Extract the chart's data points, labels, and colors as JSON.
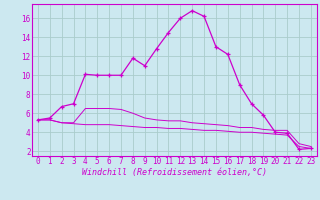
{
  "background_color": "#cce8f0",
  "grid_color": "#aacccc",
  "line_color": "#cc00cc",
  "marker_color": "#cc00cc",
  "xlabel": "Windchill (Refroidissement éolien,°C)",
  "xlabel_fontsize": 6,
  "tick_fontsize": 5.5,
  "xlim": [
    -0.5,
    23.5
  ],
  "ylim": [
    1.5,
    17.5
  ],
  "yticks": [
    2,
    4,
    6,
    8,
    10,
    12,
    14,
    16
  ],
  "xticks": [
    0,
    1,
    2,
    3,
    4,
    5,
    6,
    7,
    8,
    9,
    10,
    11,
    12,
    13,
    14,
    15,
    16,
    17,
    18,
    19,
    20,
    21,
    22,
    23
  ],
  "series1_x": [
    0,
    1,
    2,
    3,
    4,
    5,
    6,
    7,
    8,
    9,
    10,
    11,
    12,
    13,
    14,
    15,
    16,
    17,
    18,
    19,
    20,
    21,
    22,
    23
  ],
  "series1_y": [
    5.3,
    5.5,
    6.7,
    7.0,
    10.1,
    10.0,
    10.0,
    10.0,
    11.8,
    11.0,
    12.8,
    14.5,
    16.0,
    16.8,
    16.2,
    13.0,
    12.2,
    9.0,
    7.0,
    5.8,
    4.0,
    3.9,
    2.2,
    2.3
  ],
  "series2_x": [
    0,
    1,
    2,
    3,
    4,
    5,
    6,
    7,
    8,
    9,
    10,
    11,
    12,
    13,
    14,
    15,
    16,
    17,
    18,
    19,
    20,
    21,
    22,
    23
  ],
  "series2_y": [
    5.3,
    5.3,
    5.0,
    5.0,
    6.5,
    6.5,
    6.5,
    6.4,
    6.0,
    5.5,
    5.3,
    5.2,
    5.2,
    5.0,
    4.9,
    4.8,
    4.7,
    4.5,
    4.5,
    4.3,
    4.2,
    4.2,
    2.8,
    2.5
  ],
  "series3_x": [
    0,
    1,
    2,
    3,
    4,
    5,
    6,
    7,
    8,
    9,
    10,
    11,
    12,
    13,
    14,
    15,
    16,
    17,
    18,
    19,
    20,
    21,
    22,
    23
  ],
  "series3_y": [
    5.3,
    5.3,
    5.0,
    4.9,
    4.8,
    4.8,
    4.8,
    4.7,
    4.6,
    4.5,
    4.5,
    4.4,
    4.4,
    4.3,
    4.2,
    4.2,
    4.1,
    4.0,
    4.0,
    3.9,
    3.8,
    3.7,
    2.5,
    2.3
  ]
}
